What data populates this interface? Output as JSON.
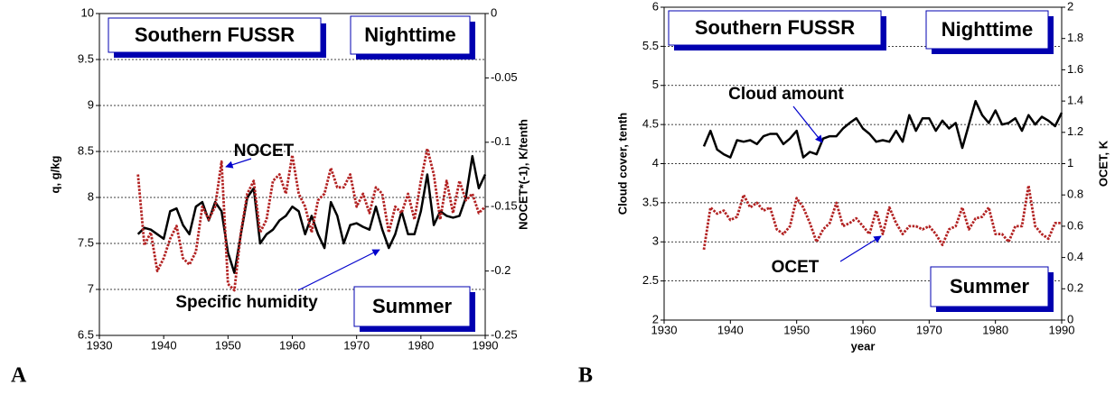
{
  "chart_data": [
    {
      "type": "line",
      "panel_label": "A",
      "boxes": [
        "Southern FUSSR",
        "Nighttime",
        "Summer"
      ],
      "ylabel": "q, g/kg",
      "y2label": "NOCET*(-1), K/tenth",
      "x": [
        1936,
        1937,
        1938,
        1939,
        1940,
        1941,
        1942,
        1943,
        1944,
        1945,
        1946,
        1947,
        1948,
        1949,
        1950,
        1951,
        1952,
        1953,
        1954,
        1955,
        1956,
        1957,
        1958,
        1959,
        1960,
        1961,
        1962,
        1963,
        1964,
        1965,
        1966,
        1967,
        1968,
        1969,
        1970,
        1971,
        1972,
        1973,
        1974,
        1975,
        1976,
        1977,
        1978,
        1979,
        1980,
        1981,
        1982,
        1983,
        1984,
        1985,
        1986,
        1987,
        1988,
        1989,
        1990
      ],
      "xlim": [
        1930,
        1990
      ],
      "xticks": [
        1930,
        1940,
        1950,
        1960,
        1970,
        1980,
        1990
      ],
      "ylim": [
        6.5,
        10
      ],
      "yticks": [
        6.5,
        7,
        7.5,
        8,
        8.5,
        9,
        9.5,
        10
      ],
      "y2lim": [
        -0.25,
        0
      ],
      "y2ticks": [
        -0.25,
        -0.2,
        -0.15,
        -0.1,
        -0.05,
        0
      ],
      "grid": true,
      "series": [
        {
          "name": "Specific humidity",
          "color": "#000000",
          "style": "solid",
          "values": [
            7.6,
            7.67,
            7.65,
            7.6,
            7.55,
            7.85,
            7.88,
            7.7,
            7.6,
            7.9,
            7.95,
            7.75,
            7.95,
            7.85,
            7.4,
            7.18,
            7.6,
            8.0,
            8.1,
            7.5,
            7.6,
            7.65,
            7.75,
            7.8,
            7.9,
            7.85,
            7.6,
            7.8,
            7.6,
            7.45,
            7.95,
            7.8,
            7.5,
            7.7,
            7.72,
            7.68,
            7.65,
            7.9,
            7.65,
            7.45,
            7.6,
            7.85,
            7.6,
            7.6,
            7.85,
            8.25,
            7.7,
            7.85,
            7.8,
            7.78,
            7.8,
            8.0,
            8.45,
            8.1,
            8.25
          ]
        },
        {
          "name": "NOCET",
          "color": "#b22222",
          "style": "dotted",
          "axis": "y2",
          "values": [
            -0.125,
            -0.18,
            -0.17,
            -0.2,
            -0.19,
            -0.175,
            -0.165,
            -0.19,
            -0.195,
            -0.185,
            -0.15,
            -0.16,
            -0.15,
            -0.115,
            -0.21,
            -0.215,
            -0.17,
            -0.14,
            -0.13,
            -0.17,
            -0.16,
            -0.13,
            -0.125,
            -0.14,
            -0.11,
            -0.14,
            -0.15,
            -0.17,
            -0.145,
            -0.14,
            -0.12,
            -0.135,
            -0.135,
            -0.125,
            -0.15,
            -0.14,
            -0.155,
            -0.135,
            -0.14,
            -0.17,
            -0.15,
            -0.155,
            -0.14,
            -0.16,
            -0.13,
            -0.105,
            -0.125,
            -0.16,
            -0.13,
            -0.155,
            -0.13,
            -0.145,
            -0.14,
            -0.155,
            -0.15
          ]
        }
      ]
    },
    {
      "type": "line",
      "panel_label": "B",
      "boxes": [
        "Southern FUSSR",
        "Nighttime",
        "Summer"
      ],
      "ylabel": "Cloud cover, tenth",
      "y2label": "OCET, K",
      "xlabel": "year",
      "x": [
        1936,
        1937,
        1938,
        1939,
        1940,
        1941,
        1942,
        1943,
        1944,
        1945,
        1946,
        1947,
        1948,
        1949,
        1950,
        1951,
        1952,
        1953,
        1954,
        1955,
        1956,
        1957,
        1958,
        1959,
        1960,
        1961,
        1962,
        1963,
        1964,
        1965,
        1966,
        1967,
        1968,
        1969,
        1970,
        1971,
        1972,
        1973,
        1974,
        1975,
        1976,
        1977,
        1978,
        1979,
        1980,
        1981,
        1982,
        1983,
        1984,
        1985,
        1986,
        1987,
        1988,
        1989,
        1990
      ],
      "xlim": [
        1930,
        1990
      ],
      "xticks": [
        1930,
        1940,
        1950,
        1960,
        1970,
        1980,
        1990
      ],
      "ylim": [
        2,
        6
      ],
      "yticks": [
        2,
        2.5,
        3,
        3.5,
        4,
        4.5,
        5,
        5.5,
        6
      ],
      "y2lim": [
        0,
        2
      ],
      "y2ticks": [
        0,
        0.2,
        0.4,
        0.6,
        0.8,
        1,
        1.2,
        1.4,
        1.6,
        1.8,
        2
      ],
      "grid": true,
      "series": [
        {
          "name": "Cloud amount",
          "color": "#000000",
          "style": "solid",
          "values": [
            4.22,
            4.42,
            4.18,
            4.12,
            4.08,
            4.3,
            4.28,
            4.3,
            4.25,
            4.35,
            4.38,
            4.38,
            4.25,
            4.32,
            4.42,
            4.08,
            4.15,
            4.12,
            4.32,
            4.35,
            4.35,
            4.45,
            4.52,
            4.58,
            4.45,
            4.38,
            4.28,
            4.3,
            4.28,
            4.42,
            4.28,
            4.62,
            4.42,
            4.58,
            4.58,
            4.42,
            4.55,
            4.45,
            4.52,
            4.2,
            4.5,
            4.8,
            4.62,
            4.52,
            4.68,
            4.5,
            4.52,
            4.58,
            4.42,
            4.62,
            4.5,
            4.6,
            4.55,
            4.48,
            4.65
          ]
        },
        {
          "name": "OCET",
          "color": "#b22222",
          "style": "dotted",
          "axis": "y2",
          "values": [
            0.45,
            0.72,
            0.68,
            0.7,
            0.64,
            0.66,
            0.8,
            0.72,
            0.75,
            0.7,
            0.72,
            0.58,
            0.55,
            0.6,
            0.78,
            0.72,
            0.62,
            0.5,
            0.58,
            0.62,
            0.75,
            0.6,
            0.62,
            0.65,
            0.6,
            0.55,
            0.7,
            0.55,
            0.72,
            0.62,
            0.55,
            0.6,
            0.6,
            0.58,
            0.6,
            0.55,
            0.48,
            0.58,
            0.6,
            0.72,
            0.58,
            0.65,
            0.66,
            0.72,
            0.55,
            0.55,
            0.5,
            0.6,
            0.6,
            0.86,
            0.6,
            0.55,
            0.52,
            0.62,
            0.62
          ]
        }
      ]
    }
  ]
}
